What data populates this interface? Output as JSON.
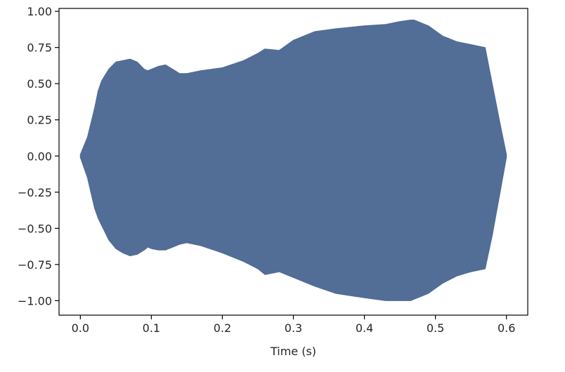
{
  "chart_data": {
    "type": "area",
    "title": "",
    "xlabel": "Time (s)",
    "ylabel": "",
    "xlim": [
      -0.03,
      0.63
    ],
    "ylim": [
      -1.1,
      1.02
    ],
    "grid": false,
    "legend": "none",
    "color": "#526d96",
    "x_ticks": [
      0.0,
      0.1,
      0.2,
      0.3,
      0.4,
      0.5,
      0.6
    ],
    "x_tick_labels": [
      "0.0",
      "0.1",
      "0.2",
      "0.3",
      "0.4",
      "0.5",
      "0.6"
    ],
    "y_ticks": [
      1.0,
      0.75,
      0.5,
      0.25,
      0.0,
      -0.25,
      -0.5,
      -0.75,
      -1.0
    ],
    "y_tick_labels": [
      "1.00",
      "0.75",
      "0.50",
      "0.25",
      "0.00",
      "−0.25",
      "−0.50",
      "−0.75",
      "−1.00"
    ],
    "series": [
      {
        "x": [
          0.0,
          0.01,
          0.02,
          0.025,
          0.03,
          0.04,
          0.05,
          0.06,
          0.07,
          0.08,
          0.09,
          0.095,
          0.1,
          0.11,
          0.12,
          0.13,
          0.14,
          0.15,
          0.17,
          0.2,
          0.23,
          0.25,
          0.26,
          0.28,
          0.3,
          0.33,
          0.36,
          0.4,
          0.43,
          0.45,
          0.465,
          0.47,
          0.49,
          0.51,
          0.53,
          0.55,
          0.57,
          0.58,
          0.59,
          0.6
        ],
        "upper": [
          0.01,
          0.13,
          0.33,
          0.45,
          0.52,
          0.6,
          0.65,
          0.66,
          0.67,
          0.65,
          0.6,
          0.59,
          0.6,
          0.62,
          0.63,
          0.6,
          0.57,
          0.57,
          0.59,
          0.61,
          0.66,
          0.71,
          0.74,
          0.73,
          0.8,
          0.86,
          0.88,
          0.9,
          0.91,
          0.93,
          0.94,
          0.94,
          0.9,
          0.83,
          0.79,
          0.77,
          0.75,
          0.5,
          0.25,
          0.01
        ],
        "lower": [
          -0.01,
          -0.15,
          -0.36,
          -0.43,
          -0.48,
          -0.58,
          -0.64,
          -0.67,
          -0.69,
          -0.68,
          -0.65,
          -0.63,
          -0.64,
          -0.65,
          -0.65,
          -0.63,
          -0.61,
          -0.6,
          -0.62,
          -0.67,
          -0.73,
          -0.78,
          -0.82,
          -0.8,
          -0.84,
          -0.9,
          -0.95,
          -0.98,
          -1.0,
          -1.0,
          -1.0,
          -0.99,
          -0.95,
          -0.88,
          -0.83,
          -0.8,
          -0.78,
          -0.55,
          -0.28,
          -0.01
        ]
      }
    ]
  }
}
